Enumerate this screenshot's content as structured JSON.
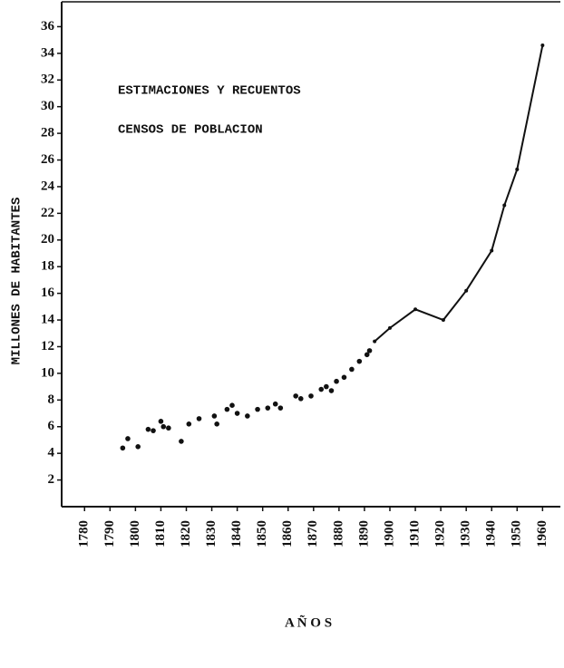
{
  "chart_data": {
    "type": "line",
    "y_label": "MILLONES DE HABITANTES",
    "x_label": "A Ñ O S",
    "series": [
      {
        "name": "ESTIMACIONES Y RECUENTOS",
        "mode": "markers",
        "color": "#111111",
        "x": [
          1795,
          1797,
          1801,
          1805,
          1807,
          1810,
          1811,
          1813,
          1818,
          1821,
          1825,
          1831,
          1832,
          1836,
          1838,
          1840,
          1844,
          1848,
          1852,
          1855,
          1857,
          1863,
          1865,
          1869,
          1873,
          1875,
          1877,
          1879,
          1882,
          1885,
          1888,
          1891,
          1892
        ],
        "values": [
          4.4,
          5.1,
          4.5,
          5.8,
          5.7,
          6.4,
          6.0,
          5.9,
          4.9,
          6.2,
          6.6,
          6.8,
          6.2,
          7.3,
          7.6,
          7.0,
          6.8,
          7.3,
          7.4,
          7.7,
          7.4,
          8.3,
          8.1,
          8.3,
          8.8,
          9.0,
          8.7,
          9.4,
          9.7,
          10.3,
          10.9,
          11.4,
          11.7
        ]
      },
      {
        "name": "CENSOS DE POBLACION",
        "mode": "lines+markers",
        "color": "#111111",
        "x": [
          1894,
          1900,
          1910,
          1921,
          1930,
          1940,
          1945,
          1950,
          1960
        ],
        "values": [
          12.4,
          13.4,
          14.8,
          14.0,
          16.2,
          19.2,
          22.6,
          25.3,
          34.6
        ]
      }
    ],
    "xlim": [
      1771,
      1967
    ],
    "xticks": [
      1780,
      1790,
      1800,
      1810,
      1820,
      1830,
      1840,
      1850,
      1860,
      1870,
      1880,
      1890,
      1900,
      1910,
      1920,
      1930,
      1940,
      1950,
      1960
    ],
    "ylim": [
      0,
      38
    ],
    "yticks": [
      2,
      4,
      6,
      8,
      10,
      12,
      14,
      16,
      18,
      20,
      22,
      24,
      26,
      28,
      30,
      32,
      34,
      36
    ],
    "grid": false
  }
}
